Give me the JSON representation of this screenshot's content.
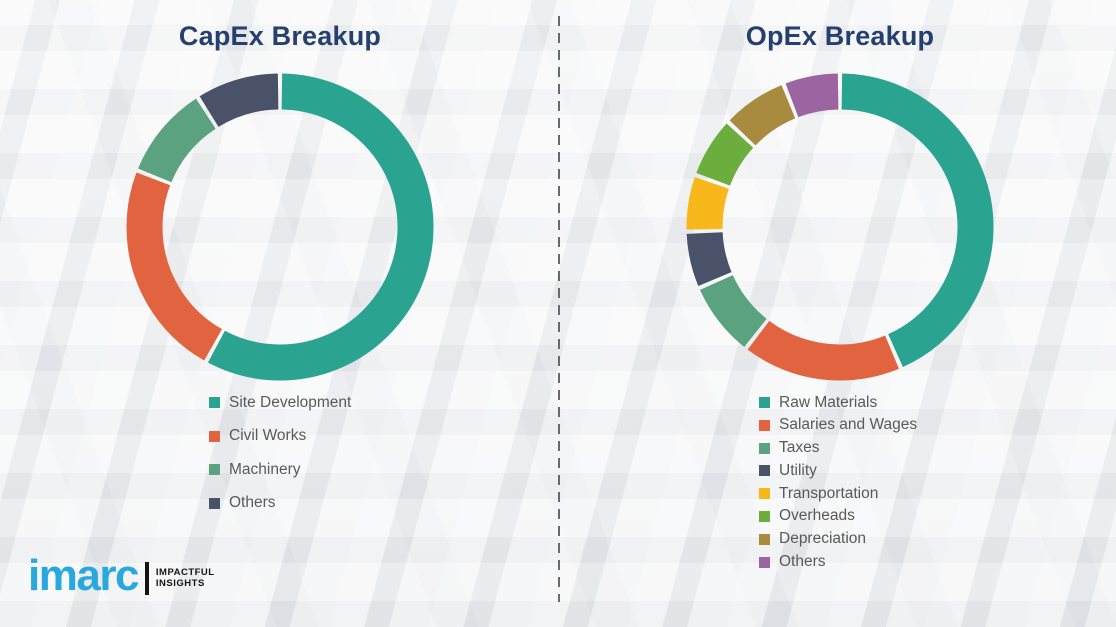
{
  "page": {
    "background_color": "#F0F1F2",
    "title_color": "#25406E",
    "legend_text_color": "#595959",
    "divider_style": "vertical-dashed"
  },
  "chart_data": [
    {
      "type": "pie",
      "donut": true,
      "title": "CapEx Breakup",
      "categories": [
        "Site Development",
        "Civil Works",
        "Machinery",
        "Others"
      ],
      "values": [
        58,
        23,
        10,
        9
      ],
      "colors": [
        "#2AA491",
        "#E2633F",
        "#5BA380",
        "#4A5269"
      ],
      "start_angle": "top",
      "direction": "clockwise",
      "legend_position": "below",
      "data_labels": false,
      "values_note": "percent of ring, estimated from arc angles (no numeric labels shown in image)"
    },
    {
      "type": "pie",
      "donut": true,
      "title": "OpEx Breakup",
      "categories": [
        "Raw Materials",
        "Salaries and Wages",
        "Taxes",
        "Utility",
        "Transportation",
        "Overheads",
        "Depreciation",
        "Others"
      ],
      "values": [
        43.5,
        17,
        8,
        6,
        6,
        6.5,
        7,
        6
      ],
      "colors": [
        "#2AA491",
        "#E2633F",
        "#5BA380",
        "#4A5269",
        "#F8B81C",
        "#6CAE3E",
        "#A98B3F",
        "#9C64A1"
      ],
      "start_angle": "top",
      "direction": "clockwise",
      "legend_position": "below",
      "data_labels": false,
      "values_note": "percent of ring, estimated from arc angles (no numeric labels shown in image)"
    }
  ],
  "logo": {
    "wordmark": "imarc",
    "tagline_line1": "IMPACTFUL",
    "tagline_line2": "INSIGHTS",
    "wordmark_color": "#29A8E0",
    "tagline_color": "#141414"
  }
}
